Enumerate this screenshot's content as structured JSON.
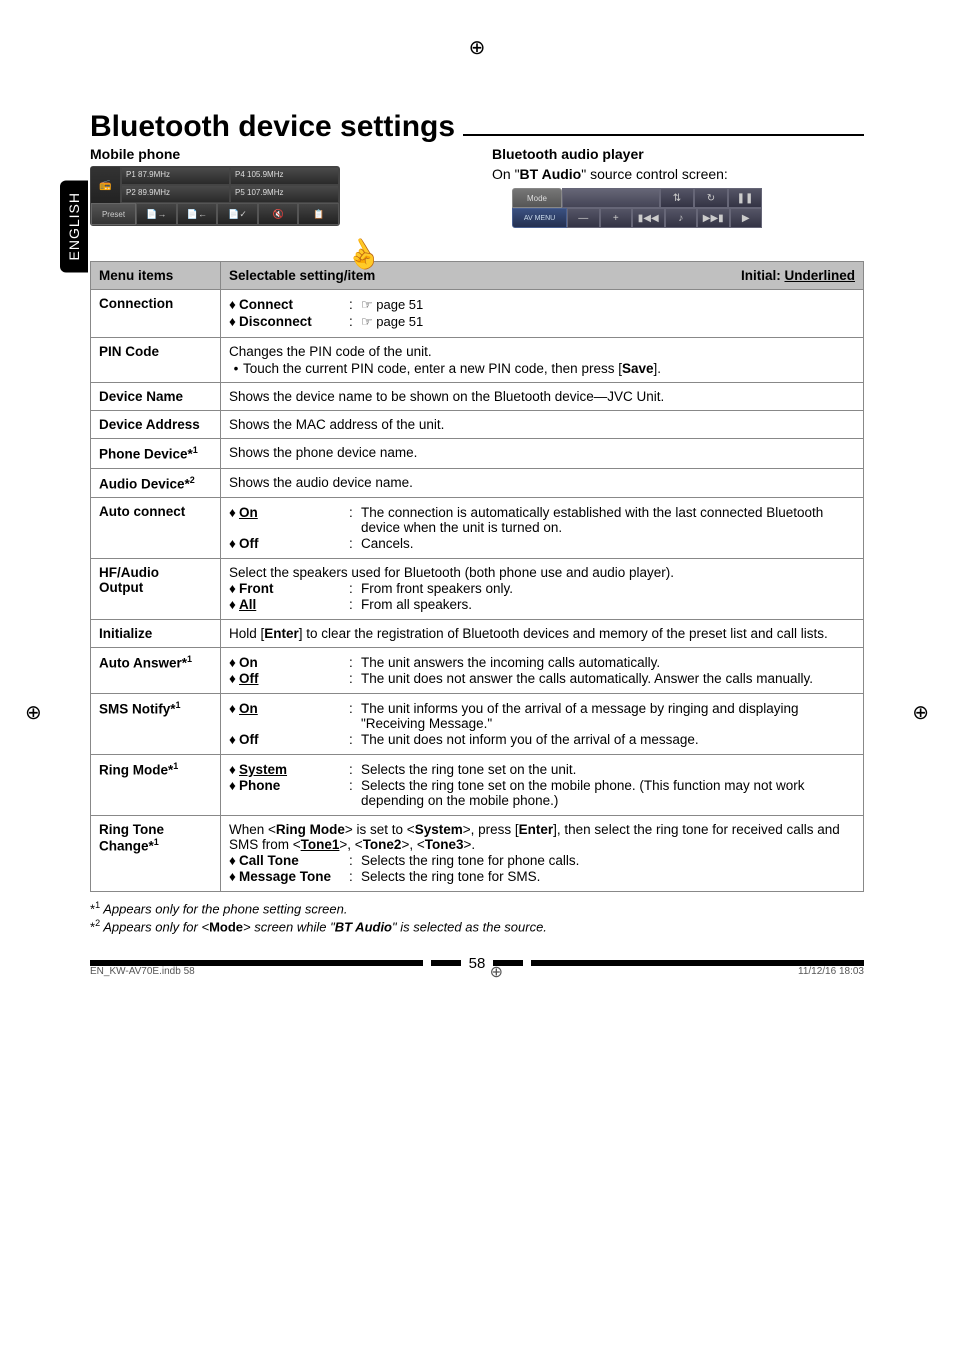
{
  "crosshair": "⊕",
  "side_tab": "ENGLISH",
  "title": "Bluetooth device settings",
  "mobile_col": {
    "heading": "Mobile phone",
    "freqs": [
      "P1 87.9MHz",
      "P4 105.9MHz",
      "P2 89.9MHz",
      "P5 107.9MHz"
    ],
    "preset": "Preset"
  },
  "bt_col": {
    "heading": "Bluetooth audio player",
    "subtext_pre": "On \"",
    "subtext_bold": "BT Audio",
    "subtext_post": "\" source control screen:",
    "mode": "Mode",
    "avmenu": "AV MENU"
  },
  "table": {
    "head_left": "Menu items",
    "head_mid": "Selectable setting/item",
    "head_right_pre": "Initial: ",
    "head_right_u": "Underlined"
  },
  "rows": {
    "connection": {
      "label": "Connection",
      "s1": "Connect",
      "d1": "☞ page 51",
      "s2": "Disconnect",
      "d2": "☞ page 51"
    },
    "pincode": {
      "label": "PIN Code",
      "line1": "Changes the PIN code of the unit.",
      "bullet": "Touch the current PIN code, enter a new PIN code, then press [",
      "bullet_b": "Save",
      "bullet_end": "]."
    },
    "devname": {
      "label": "Device Name",
      "desc": "Shows the device name to be shown on the Bluetooth device—JVC Unit."
    },
    "devaddr": {
      "label": "Device Address",
      "desc": "Shows the MAC address of the unit."
    },
    "phonedev": {
      "label": "Phone Device*",
      "sup": "1",
      "desc": "Shows the phone device name."
    },
    "audiodev": {
      "label": "Audio Device*",
      "sup": "2",
      "desc": "Shows the audio device name."
    },
    "autoconn": {
      "label": "Auto connect",
      "s1": "On",
      "d1": "The connection is automatically established with the last connected Bluetooth device when the unit is turned on.",
      "s2": "Off",
      "d2": "Cancels."
    },
    "hfoutput": {
      "label1": "HF/Audio",
      "label2": "Output",
      "line1": "Select the speakers used for Bluetooth (both phone use and audio player).",
      "s1": "Front",
      "d1": "From front speakers only.",
      "s2": "All",
      "d2": "From all speakers."
    },
    "init": {
      "label": "Initialize",
      "pre": "Hold [",
      "b": "Enter",
      "post": "] to clear the registration of Bluetooth devices and memory of the preset list and call lists."
    },
    "autoans": {
      "label": "Auto Answer*",
      "sup": "1",
      "s1": "On",
      "d1": "The unit answers the incoming calls automatically.",
      "s2": "Off",
      "d2": "The unit does not answer the calls automatically. Answer the calls manually."
    },
    "sms": {
      "label": "SMS Notify*",
      "sup": "1",
      "s1": "On",
      "d1": "The unit informs you of the arrival of a message by ringing and displaying \"Receiving Message.\"",
      "s2": "Off",
      "d2": "The unit does not inform you of the arrival of a message."
    },
    "ringmode": {
      "label": "Ring Mode*",
      "sup": "1",
      "s1": "System",
      "d1": "Selects the ring tone set on the unit.",
      "s2": "Phone",
      "d2": "Selects the ring tone set on the mobile phone. (This function may not work depending on the mobile phone.)"
    },
    "ringtone": {
      "label1": "Ring Tone",
      "label2": "Change*",
      "sup": "1",
      "l1a": "When <",
      "l1b": "Ring Mode",
      "l1c": "> is set to <",
      "l1d": "System",
      "l1e": ">, press [",
      "l1f": "Enter",
      "l1g": "], then select the ring tone for received calls and SMS from <",
      "t1": "Tone1",
      "l1h": ">, <",
      "t2": "Tone2",
      "l1i": ">, <",
      "t3": "Tone3",
      "l1j": ">.",
      "s1": "Call Tone",
      "d1": "Selects the ring tone for phone calls.",
      "s2": "Message Tone",
      "d2": "Selects the ring tone for SMS."
    }
  },
  "footnotes": {
    "f1_sup": "1",
    "f1": " Appears only for the phone setting screen.",
    "f2_sup": "2",
    "f2_pre": " Appears only for <",
    "f2_b": "Mode",
    "f2_mid": "> screen while \"",
    "f2_bi": "BT Audio",
    "f2_post": "\" is selected as the source."
  },
  "page_num": "58",
  "footer": {
    "left": "EN_KW-AV70E.indb   58",
    "right": "11/12/16   18:03"
  }
}
